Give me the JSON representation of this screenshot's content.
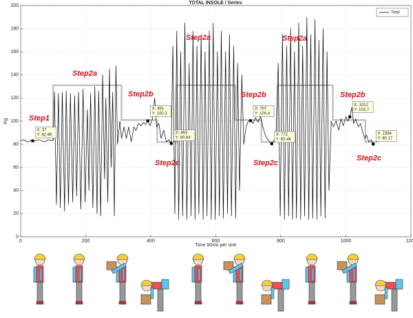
{
  "chart_data": {
    "type": "line",
    "title": "TOTAL INSOLE / Series",
    "x_label": "Time 50ms per unit",
    "y_label": "Kg",
    "xlim": [
      0,
      1200
    ],
    "xticks": [
      0,
      200,
      400,
      600,
      800,
      1000,
      1200
    ],
    "ylim": [
      0,
      200
    ],
    "yticks": [
      0,
      20,
      40,
      60,
      80,
      100,
      120,
      140,
      160,
      180,
      200
    ],
    "grid": true,
    "legend": "upper right",
    "series": [
      {
        "name": "Total",
        "color": "#000000",
        "x": [
          0,
          10,
          20,
          30,
          37,
          45,
          55,
          65,
          75,
          85,
          95,
          100,
          104,
          110,
          116,
          122,
          128,
          135,
          140,
          147,
          153,
          160,
          166,
          172,
          178,
          185,
          192,
          198,
          205,
          210,
          215,
          222,
          228,
          235,
          240,
          246,
          252,
          258,
          262,
          268,
          273,
          278,
          283,
          288,
          293,
          298,
          305,
          310,
          318,
          325,
          332,
          340,
          348,
          355,
          362,
          370,
          378,
          385,
          391,
          398,
          405,
          412,
          418,
          425,
          432,
          440,
          448,
          455,
          463,
          468,
          474,
          480,
          486,
          492,
          498,
          505,
          511,
          518,
          524,
          530,
          536,
          542,
          548,
          555,
          561,
          567,
          573,
          580,
          586,
          592,
          598,
          605,
          611,
          617,
          623,
          630,
          636,
          642,
          648,
          655,
          661,
          667,
          673,
          680,
          686,
          693,
          700,
          707,
          715,
          722,
          730,
          738,
          745,
          752,
          760,
          766,
          772,
          778,
          785,
          792,
          798,
          805,
          811,
          818,
          824,
          830,
          836,
          842,
          848,
          855,
          861,
          867,
          873,
          880,
          886,
          892,
          898,
          905,
          911,
          917,
          923,
          930,
          936,
          942,
          948,
          955,
          962,
          970,
          978,
          985,
          992,
          1000,
          1006,
          1012,
          1018,
          1024,
          1030,
          1038,
          1045,
          1052,
          1058,
          1064,
          1070,
          1078,
          1084
        ],
        "values": [
          83,
          84,
          82,
          83,
          82.95,
          83,
          84,
          83,
          82,
          84,
          83,
          84,
          125,
          28,
          124,
          25,
          125,
          22,
          126,
          28,
          124,
          30,
          122,
          35,
          125,
          24,
          128,
          30,
          110,
          40,
          124,
          25,
          130,
          20,
          126,
          18,
          140,
          50,
          120,
          30,
          145,
          60,
          125,
          18,
          148,
          80,
          100,
          85,
          95,
          85,
          95,
          82,
          95,
          92,
          98,
          96,
          99,
          97,
          100.3,
          96,
          102,
          120,
          95,
          98,
          85,
          92,
          82,
          84,
          80.64,
          165,
          20,
          178,
          15,
          160,
          18,
          185,
          15,
          150,
          18,
          178,
          15,
          165,
          20,
          175,
          15,
          160,
          18,
          178,
          15,
          185,
          15,
          160,
          18,
          178,
          16,
          160,
          20,
          175,
          18,
          165,
          16,
          150,
          40,
          140,
          80,
          95,
          100,
          100.4,
          98,
          103,
          99,
          104,
          95,
          88,
          84,
          82,
          80.46,
          83,
          86,
          150,
          18,
          175,
          15,
          165,
          18,
          180,
          15,
          160,
          16,
          185,
          15,
          165,
          18,
          190,
          15,
          175,
          16,
          188,
          15,
          170,
          18,
          180,
          16,
          160,
          40,
          100,
          95,
          100,
          92,
          102,
          96,
          104,
          100,
          103.7,
          112,
          98,
          102,
          95,
          98,
          90,
          85,
          88,
          82,
          84,
          80.17
        ]
      }
    ],
    "step_line": {
      "color": "#bbbbbb",
      "x": [
        100,
        100,
        310,
        310,
        420,
        420,
        480,
        480,
        660,
        660,
        740,
        740,
        790,
        790,
        960,
        960,
        1060,
        1060,
        1100
      ],
      "values": [
        83,
        131,
        131,
        101,
        101,
        82,
        82,
        131,
        131,
        101,
        101,
        82,
        82,
        131,
        131,
        101,
        101,
        82,
        82
      ]
    },
    "annotations": [
      "Step1",
      "Step2a",
      "Step2b",
      "Step2a",
      "Step2c",
      "Step2b",
      "Step2a",
      "Step2c",
      "Step2b",
      "Step2c"
    ],
    "datatips": [
      {
        "x": 37,
        "y": 82.95,
        "label_x": "X: 37",
        "label_y": "Y: 82.95"
      },
      {
        "x": 391,
        "y": 100.3,
        "label_x": "X: 391",
        "label_y": "Y: 100.3"
      },
      {
        "x": 463,
        "y": 80.64,
        "label_x": "X: 463",
        "label_y": "Y: 80.64"
      },
      {
        "x": 707,
        "y": 100.4,
        "label_x": "X: 707",
        "label_y": "Y: 100.4"
      },
      {
        "x": 772,
        "y": 80.46,
        "label_x": "X: 772",
        "label_y": "Y: 80.46"
      },
      {
        "x": 1012,
        "y": 103.7,
        "label_x": "X: 1012",
        "label_y": "Y: 103.7"
      },
      {
        "x": 1084,
        "y": 80.17,
        "label_x": "X: 1084",
        "label_y": "Y: 80.17"
      }
    ]
  }
}
